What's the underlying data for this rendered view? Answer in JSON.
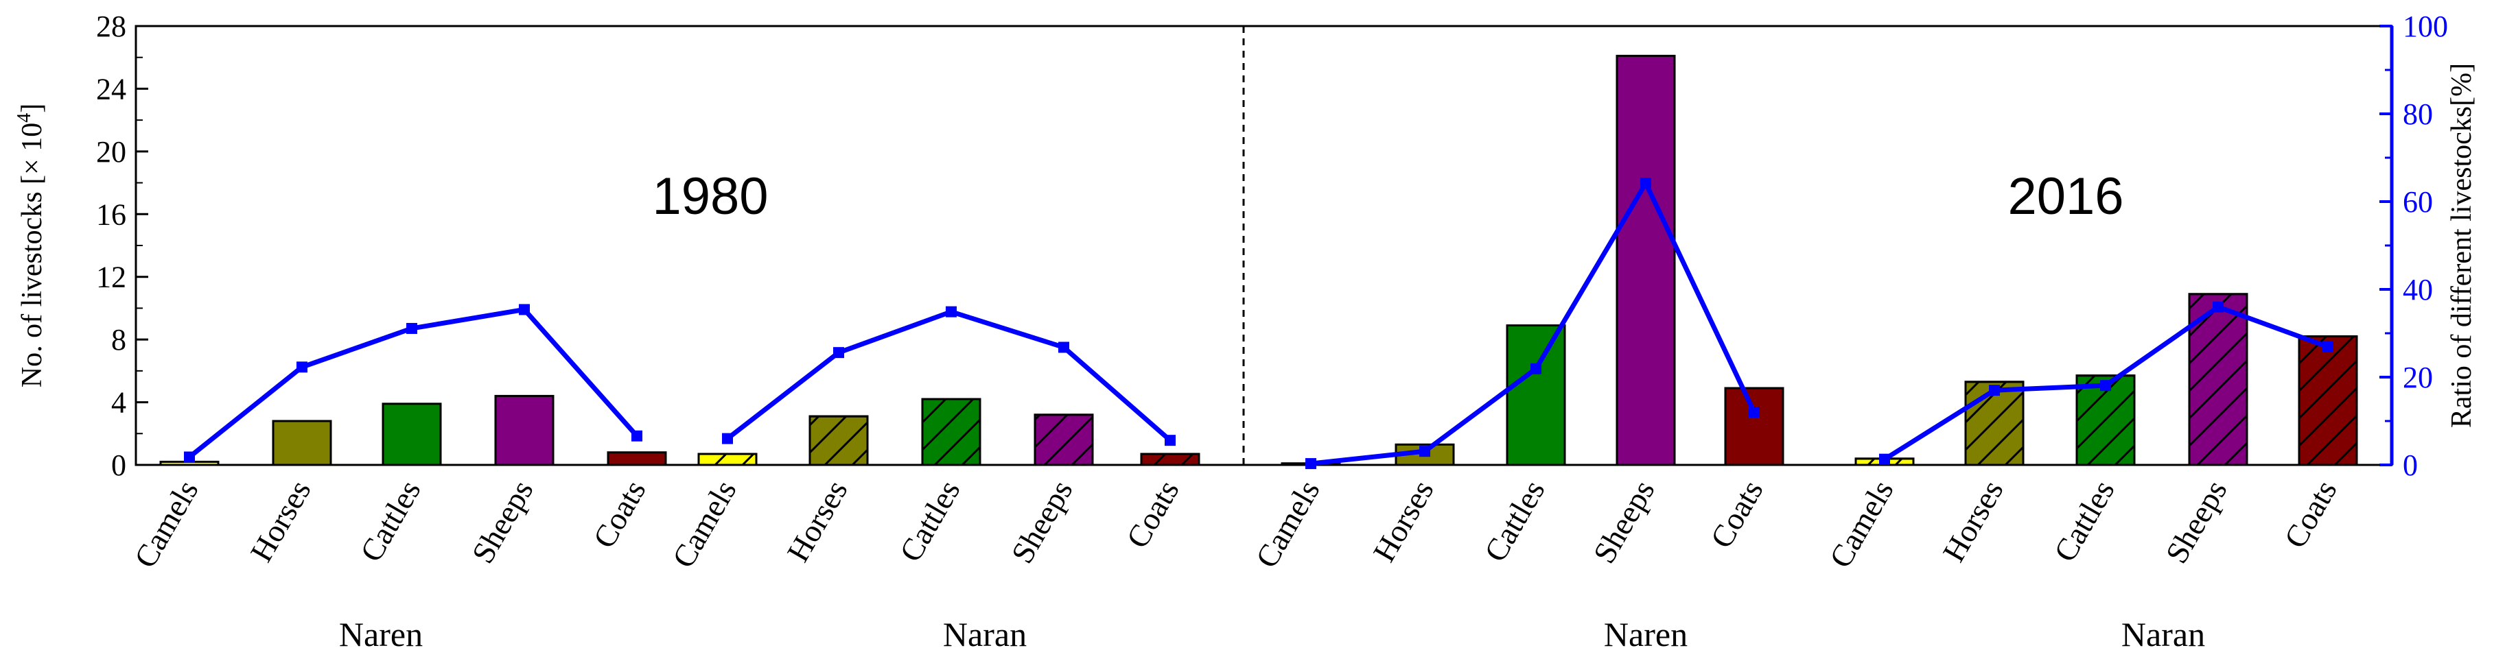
{
  "chart_data": {
    "type": "bar",
    "ylabel_left": "No. of livestocks [× 10",
    "ylabel_left_sup": "4",
    "ylabel_left_end": "]",
    "ylabel_right": "Ratio of different livestocks[%]",
    "ylim_left": [
      0,
      28
    ],
    "yticks_left": [
      "0",
      "4",
      "8",
      "12",
      "16",
      "20",
      "24",
      "28"
    ],
    "ylim_right": [
      0,
      100
    ],
    "yticks_right": [
      "0",
      "20",
      "40",
      "60",
      "80",
      "100"
    ],
    "panels": [
      {
        "year": "1980",
        "groups": [
          {
            "name": "Naren",
            "hatched": false,
            "categories": [
              "Camels",
              "Horses",
              "Cattles",
              "Sheeps",
              "Coats"
            ],
            "values": [
              0.2,
              2.8,
              3.9,
              4.4,
              0.8
            ],
            "ratio": [
              1.8,
              22.3,
              31.1,
              35.4,
              6.6
            ]
          },
          {
            "name": "Naran",
            "hatched": true,
            "categories": [
              "Camels",
              "Horses",
              "Cattles",
              "Sheeps",
              "Coats"
            ],
            "values": [
              0.7,
              3.1,
              4.2,
              3.2,
              0.7
            ],
            "ratio": [
              6.0,
              25.6,
              34.9,
              26.8,
              5.6
            ]
          }
        ]
      },
      {
        "year": "2016",
        "groups": [
          {
            "name": "Naren",
            "hatched": false,
            "categories": [
              "Camels",
              "Horses",
              "Cattles",
              "Sheeps",
              "Coats"
            ],
            "values": [
              0.1,
              1.3,
              8.9,
              26.1,
              4.9
            ],
            "ratio": [
              0.3,
              3.1,
              21.9,
              64.2,
              12.0
            ]
          },
          {
            "name": "Naran",
            "hatched": true,
            "categories": [
              "Camels",
              "Horses",
              "Cattles",
              "Sheeps",
              "Coats"
            ],
            "values": [
              0.4,
              5.3,
              5.7,
              10.9,
              8.2
            ],
            "ratio": [
              1.3,
              17.0,
              18.1,
              36.0,
              26.9
            ]
          }
        ]
      }
    ],
    "bar_colors": {
      "Camels": "#ffff00",
      "Horses": "#808000",
      "Cattles": "#008000",
      "Sheeps": "#800080",
      "Coats": "#800000"
    },
    "line_color": "#0000ff",
    "grid": false
  }
}
